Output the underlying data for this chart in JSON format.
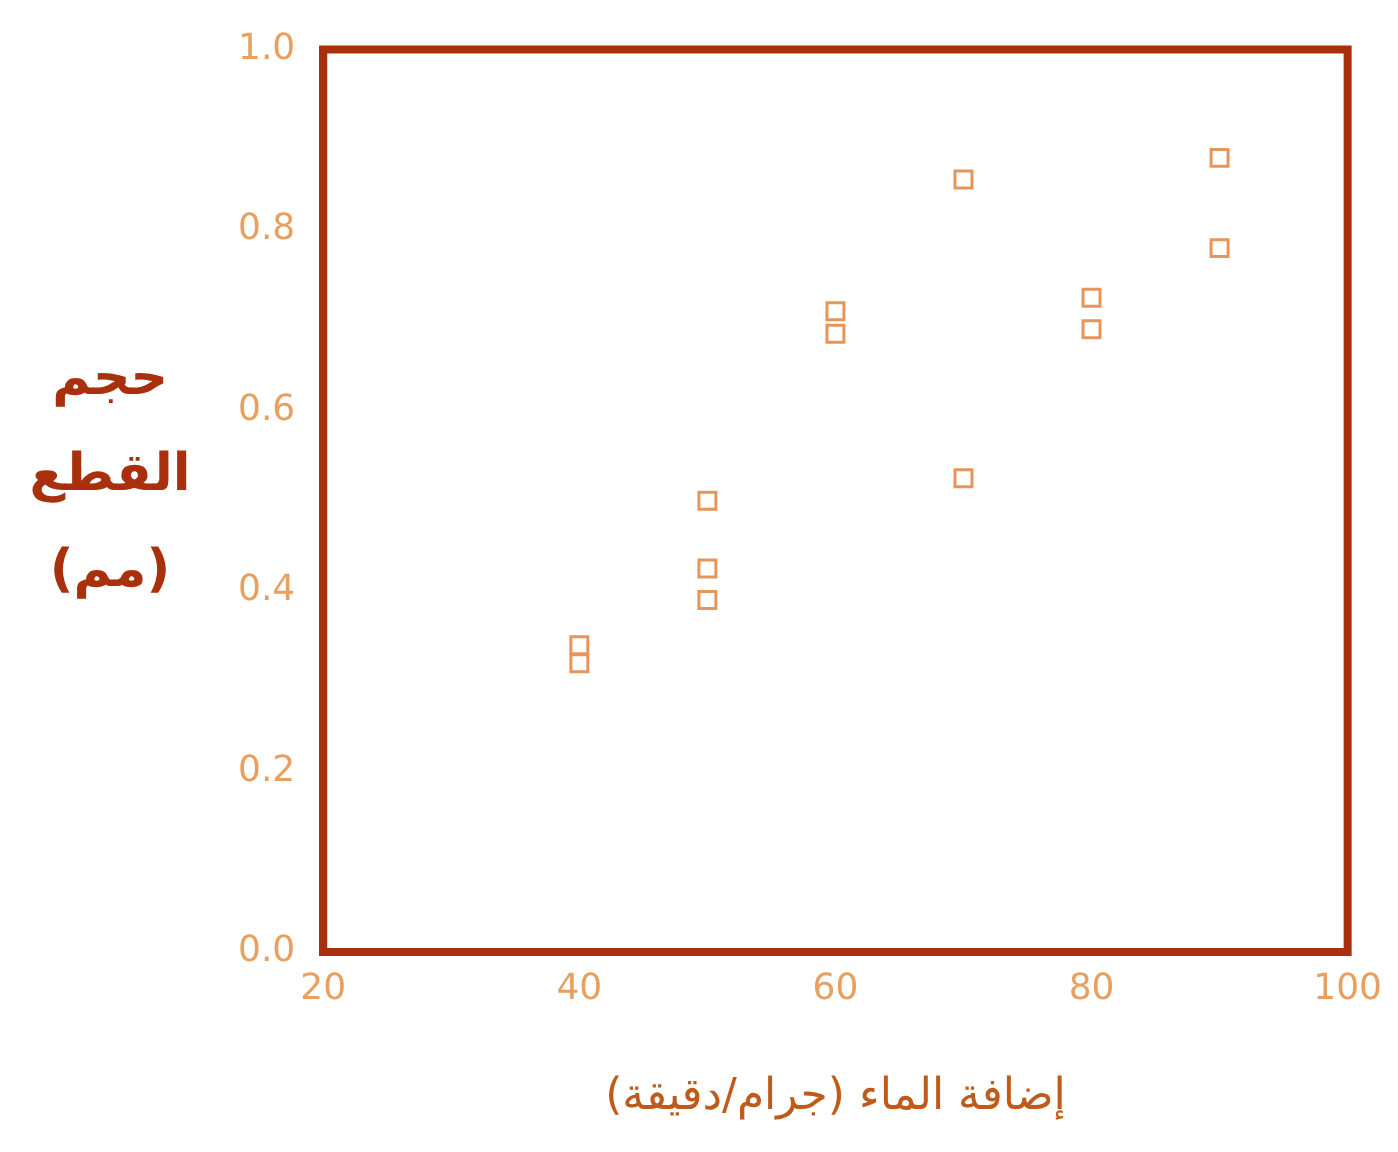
{
  "chart_data": {
    "type": "scatter",
    "xlabel": "إضافة الماء (جرام/دقيقة)",
    "ylabel": "حجم\nالقطع\n(مم)",
    "x": [
      40,
      40,
      50,
      50,
      50,
      60,
      60,
      70,
      70,
      80,
      80,
      90,
      90
    ],
    "series": [
      {
        "color": "#e8955a",
        "values": [
          0.34,
          0.32,
          0.5,
          0.425,
          0.39,
          0.71,
          0.685,
          0.856,
          0.525,
          0.725,
          0.69,
          0.88,
          0.78
        ]
      }
    ],
    "marker": "square",
    "xlim": [
      20,
      100
    ],
    "xticks": [
      20,
      40,
      60,
      80,
      100
    ],
    "ylim": [
      0,
      1
    ],
    "yticks": [
      {
        "value": 0,
        "label": "0.0"
      },
      {
        "value": 0.2,
        "label": "0.2"
      },
      {
        "value": 0.4,
        "label": "0.4"
      },
      {
        "value": 0.6,
        "label": "0.6"
      },
      {
        "value": 0.8,
        "label": "0.8"
      },
      {
        "value": 1,
        "label": "1.0"
      }
    ],
    "grid": false,
    "legend": false
  }
}
